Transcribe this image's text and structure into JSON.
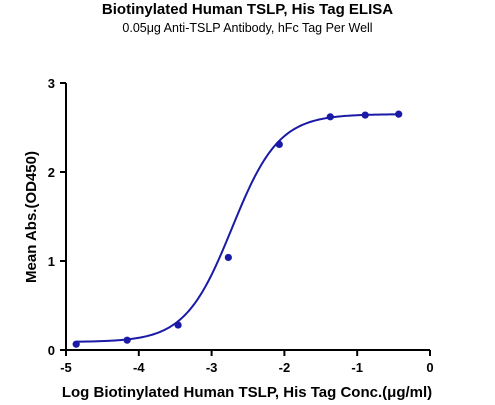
{
  "chart_data": {
    "type": "scatter",
    "title": "Biotinylated Human TSLP, His Tag ELISA",
    "subtitle": "0.05μg Anti-TSLP Antibody, hFc Tag Per Well",
    "xlabel": "Log Biotinylated Human TSLP, His Tag Conc.(μg/ml)",
    "ylabel": "Mean Abs.(OD450)",
    "xlim": [
      -5,
      0
    ],
    "ylim": [
      0,
      3
    ],
    "x_ticks": [
      "-5",
      "-4",
      "-3",
      "-2",
      "-1",
      "0"
    ],
    "y_ticks": [
      "0",
      "1",
      "2",
      "3"
    ],
    "grid": false,
    "points": {
      "x": [
        -4.86,
        -4.16,
        -3.46,
        -2.77,
        -2.07,
        -1.37,
        -0.89,
        -0.43
      ],
      "y": [
        0.065,
        0.11,
        0.28,
        1.04,
        2.31,
        2.62,
        2.64,
        2.65
      ]
    },
    "fit_curve": {
      "model": "four-parameter logistic",
      "bottom": 0.09,
      "top": 2.65,
      "log_ec50": -2.72,
      "hill_slope": 1.35
    },
    "colors": {
      "series": "#1a1aa6",
      "axis": "#000000"
    }
  }
}
